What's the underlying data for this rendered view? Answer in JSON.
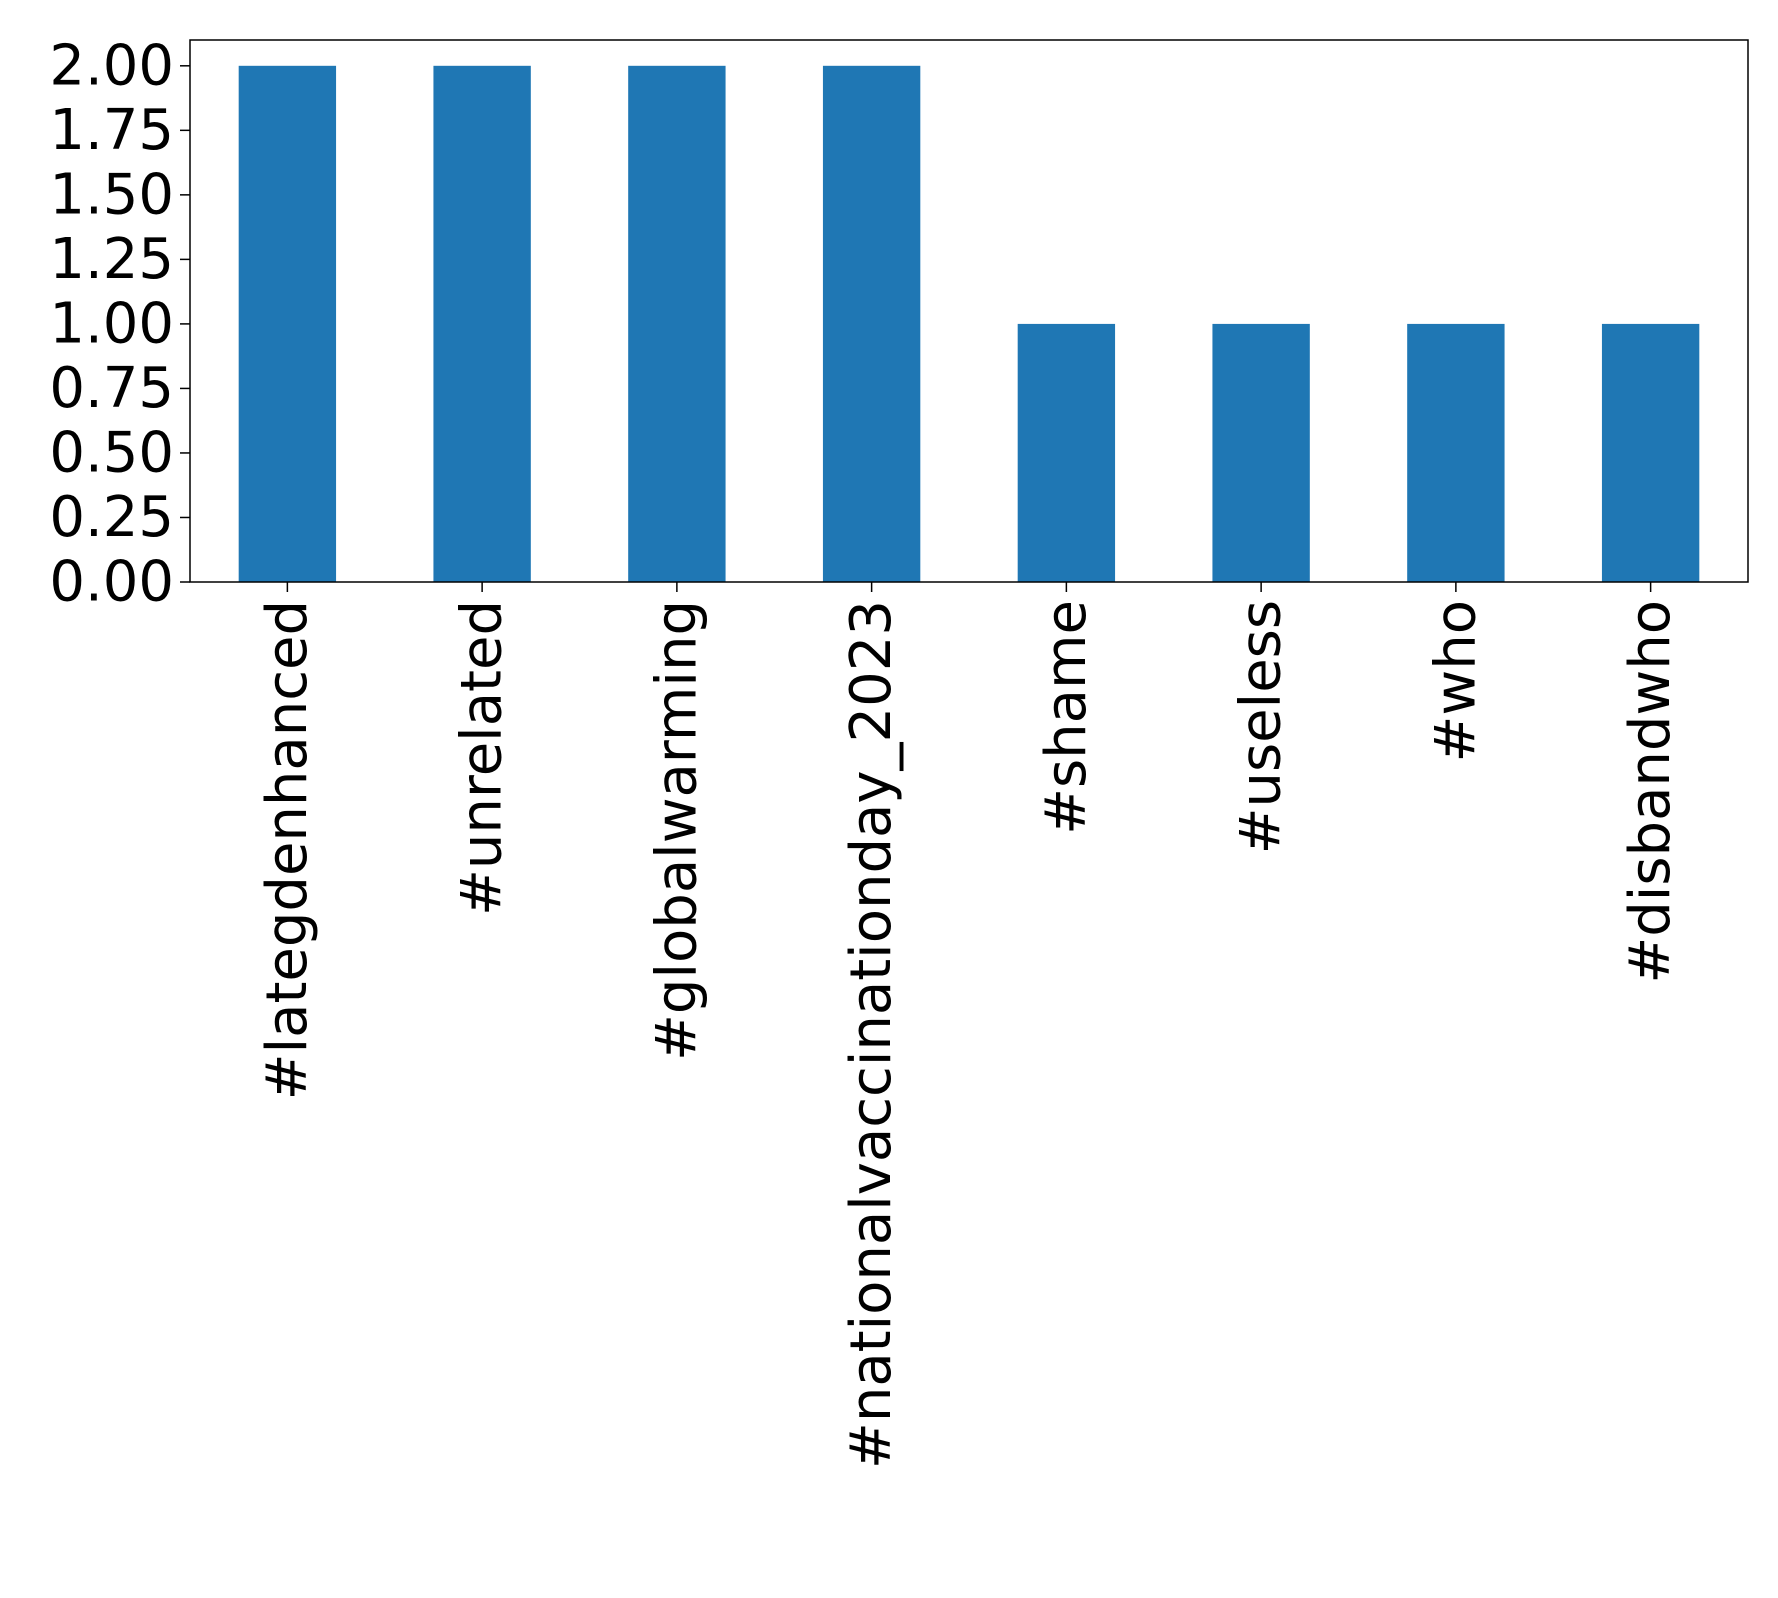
{
  "chart_data": {
    "type": "bar",
    "title": "",
    "xlabel": "",
    "ylabel": "",
    "categories": [
      "#lategdenhanced",
      "#unrelated",
      "#globalwarming",
      "#nationalvaccinationday_2023",
      "#shame",
      "#useless",
      "#who",
      "#disbandwho"
    ],
    "values": [
      2,
      2,
      2,
      2,
      1,
      1,
      1,
      1
    ],
    "ylim": [
      0,
      2.1
    ],
    "yticks": [
      "0.00",
      "0.25",
      "0.50",
      "0.75",
      "1.00",
      "1.25",
      "1.50",
      "1.75",
      "2.00"
    ],
    "bar_color": "#1f77b4",
    "grid": false,
    "legend": "none"
  }
}
